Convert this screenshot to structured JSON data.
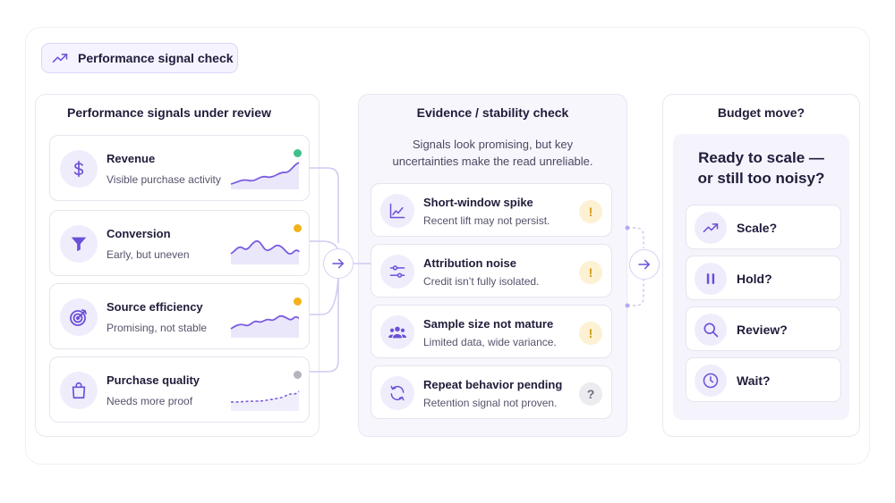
{
  "header": {
    "chip_label": "Performance signal check",
    "chip_icon": "trending-up-icon"
  },
  "signals": {
    "title": "Performance signals under review",
    "items": [
      {
        "title": "Revenue",
        "subtitle": "Visible purchase activity",
        "icon": "dollar-icon",
        "status_color": "#3fc08a"
      },
      {
        "title": "Conversion",
        "subtitle": "Early, but uneven",
        "icon": "funnel-icon",
        "status_color": "#f3b31a"
      },
      {
        "title": "Source efficiency",
        "subtitle": "Promising, not stable",
        "icon": "target-icon",
        "status_color": "#f3b31a"
      },
      {
        "title": "Purchase quality",
        "subtitle": "Needs more proof",
        "icon": "shopping-bag-icon",
        "status_color": "#b4b3be"
      }
    ]
  },
  "evidence": {
    "title": "Evidence / stability check",
    "subtitle_line1": "Signals look promising, but key",
    "subtitle_line2": "uncertainties make the read unreliable.",
    "items": [
      {
        "title": "Short-window spike",
        "subtitle": "Recent lift may not persist.",
        "icon": "chart-icon",
        "badge": "!"
      },
      {
        "title": "Attribution noise",
        "subtitle": "Credit isn’t fully isolated.",
        "icon": "sliders-icon",
        "badge": "!"
      },
      {
        "title": "Sample size not mature",
        "subtitle": "Limited data, wide variance.",
        "icon": "users-icon",
        "badge": "!"
      },
      {
        "title": "Repeat behavior pending",
        "subtitle": "Retention signal not proven.",
        "icon": "refresh-icon",
        "badge": "?"
      }
    ]
  },
  "budget": {
    "title": "Budget move?",
    "question_line1": "Ready to scale —",
    "question_line2": "or still too noisy?",
    "options": [
      {
        "label": "Scale?",
        "icon": "trending-up-icon"
      },
      {
        "label": "Hold?",
        "icon": "pause-icon"
      },
      {
        "label": "Review?",
        "icon": "search-icon"
      },
      {
        "label": "Wait?",
        "icon": "clock-icon"
      }
    ]
  },
  "colors": {
    "accent": "#6c4fd8",
    "accent_soft": "#efedfb",
    "warn": "#d39a14"
  }
}
